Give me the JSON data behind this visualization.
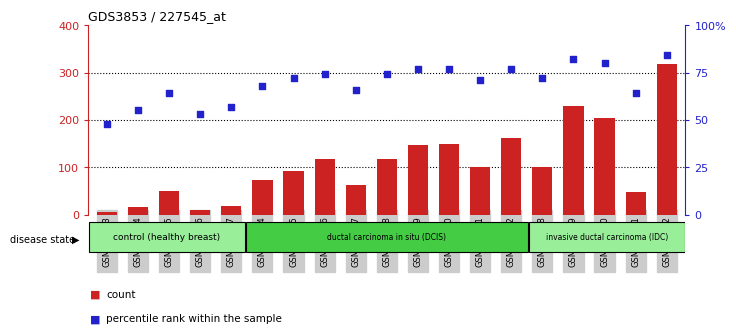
{
  "title": "GDS3853 / 227545_at",
  "samples": [
    "GSM535613",
    "GSM535614",
    "GSM535615",
    "GSM535616",
    "GSM535617",
    "GSM535604",
    "GSM535605",
    "GSM535606",
    "GSM535607",
    "GSM535608",
    "GSM535609",
    "GSM535610",
    "GSM535611",
    "GSM535612",
    "GSM535618",
    "GSM535619",
    "GSM535620",
    "GSM535621",
    "GSM535622"
  ],
  "counts": [
    5,
    15,
    50,
    10,
    18,
    72,
    93,
    118,
    62,
    117,
    147,
    148,
    100,
    162,
    100,
    230,
    205,
    47,
    318
  ],
  "percentiles": [
    48,
    55,
    64,
    53,
    57,
    68,
    72,
    74,
    66,
    74,
    77,
    77,
    71,
    77,
    72,
    82,
    80,
    64,
    84
  ],
  "bar_color": "#cc2222",
  "dot_color": "#2222cc",
  "groups": [
    {
      "label": "control (healthy breast)",
      "start": 0,
      "end": 5,
      "color": "#99ee99"
    },
    {
      "label": "ductal carcinoma in situ (DCIS)",
      "start": 5,
      "end": 14,
      "color": "#44cc44"
    },
    {
      "label": "invasive ductal carcinoma (IDC)",
      "start": 14,
      "end": 19,
      "color": "#99ee99"
    }
  ],
  "ylim_left": [
    0,
    400
  ],
  "ylim_right": [
    0,
    100
  ],
  "yticks_left": [
    0,
    100,
    200,
    300,
    400
  ],
  "yticks_right": [
    0,
    25,
    50,
    75,
    100
  ],
  "ytick_labels_right": [
    "0",
    "25",
    "50",
    "75",
    "100%"
  ],
  "legend_count_label": "count",
  "legend_pct_label": "percentile rank within the sample",
  "disease_state_label": "disease state",
  "bg_color": "#ffffff",
  "plot_bg_color": "#ffffff",
  "tick_bg_color": "#cccccc",
  "grid_yticks": [
    100,
    200,
    300
  ]
}
